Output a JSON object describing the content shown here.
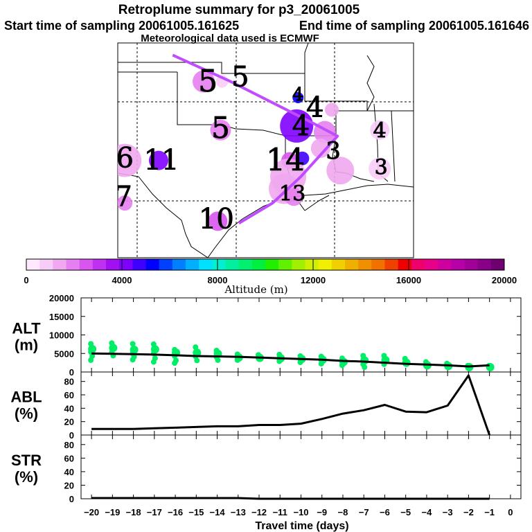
{
  "header": {
    "title": "Retroplume summary for p3_20061005",
    "line2_start": "Start time of sampling 20061005.161625",
    "line2_end": "End time of sampling 20061005.161646",
    "line3": "Meteorological data used is ECMWF"
  },
  "colors": {
    "markers": "#00ee66",
    "line": "#000000",
    "track": "#c04cff"
  },
  "colorbar": {
    "label": "Altitude (m)",
    "tick_labels": [
      "0",
      "4000",
      "8000",
      "12000",
      "16000",
      "20000"
    ],
    "min": 0,
    "max": 20000,
    "colors": [
      "#fde8fd",
      "#f8ccf8",
      "#f0a8f0",
      "#e680f0",
      "#d855f0",
      "#c030f0",
      "#a010f0",
      "#8000ff",
      "#4000ff",
      "#0000ff",
      "#0040ff",
      "#0080ff",
      "#00b0ff",
      "#00e0ff",
      "#00f0d0",
      "#00f0a0",
      "#00f070",
      "#00f040",
      "#20f000",
      "#60f000",
      "#a0f000",
      "#d0f000",
      "#f0f000",
      "#f0d000",
      "#f0b000",
      "#f09000",
      "#f07000",
      "#f04000",
      "#f00000",
      "#f0006a",
      "#e8008a",
      "#d000a0",
      "#b800a8",
      "#a00098",
      "#880088",
      "#700070"
    ]
  },
  "map": {
    "labels": [
      {
        "text": "5",
        "lon": -100.6,
        "lat": 36.5,
        "size": 44
      },
      {
        "text": "5",
        "lon": -98.3,
        "lat": 36.7,
        "size": 40
      },
      {
        "text": "4",
        "lon": -94.2,
        "lat": 35.9,
        "size": 26
      },
      {
        "text": "4",
        "lon": -93.0,
        "lat": 35.2,
        "size": 40
      },
      {
        "text": "4",
        "lon": -94.0,
        "lat": 34.3,
        "size": 40
      },
      {
        "text": "4",
        "lon": -88.4,
        "lat": 34.1,
        "size": 30
      },
      {
        "text": "5",
        "lon": -99.7,
        "lat": 34.2,
        "size": 42
      },
      {
        "text": "3",
        "lon": -91.7,
        "lat": 33.1,
        "size": 34
      },
      {
        "text": "6",
        "lon": -106.5,
        "lat": 32.7,
        "size": 40
      },
      {
        "text": "11",
        "lon": -103.9,
        "lat": 32.6,
        "size": 40
      },
      {
        "text": "14",
        "lon": -95.1,
        "lat": 32.6,
        "size": 44
      },
      {
        "text": "3",
        "lon": -88.3,
        "lat": 32.3,
        "size": 30
      },
      {
        "text": "7",
        "lon": -106.6,
        "lat": 30.8,
        "size": 40
      },
      {
        "text": "13",
        "lon": -94.6,
        "lat": 31.0,
        "size": 30
      },
      {
        "text": "10",
        "lon": -100.0,
        "lat": 29.7,
        "size": 40
      }
    ],
    "plumes": [
      {
        "lon": -100.9,
        "lat": 36.6,
        "alt": 1800,
        "r": 16
      },
      {
        "lon": -99.6,
        "lat": 36.6,
        "alt": 800,
        "r": 9
      },
      {
        "lon": -94.2,
        "lat": 35.8,
        "alt": 5200,
        "r": 8
      },
      {
        "lon": -91.8,
        "lat": 35.2,
        "alt": 1200,
        "r": 10
      },
      {
        "lon": -94.3,
        "lat": 34.4,
        "alt": 4200,
        "r": 24
      },
      {
        "lon": -92.3,
        "lat": 34.1,
        "alt": 2200,
        "r": 16
      },
      {
        "lon": -88.4,
        "lat": 34.2,
        "alt": 1000,
        "r": 14
      },
      {
        "lon": -99.7,
        "lat": 34.2,
        "alt": 1700,
        "r": 15
      },
      {
        "lon": -92.6,
        "lat": 33.3,
        "alt": 1500,
        "r": 14
      },
      {
        "lon": -106.5,
        "lat": 32.7,
        "alt": 1600,
        "r": 24
      },
      {
        "lon": -104.1,
        "lat": 32.7,
        "alt": 4400,
        "r": 14
      },
      {
        "lon": -93.9,
        "lat": 32.8,
        "alt": 4600,
        "r": 10
      },
      {
        "lon": -94.8,
        "lat": 32.7,
        "alt": 2500,
        "r": 12
      },
      {
        "lon": -91.2,
        "lat": 32.2,
        "alt": 1400,
        "r": 20
      },
      {
        "lon": -88.4,
        "lat": 32.3,
        "alt": 700,
        "r": 16
      },
      {
        "lon": -94.9,
        "lat": 31.9,
        "alt": 1300,
        "r": 26
      },
      {
        "lon": -95.2,
        "lat": 31.3,
        "alt": 1600,
        "r": 22
      },
      {
        "lon": -106.5,
        "lat": 30.6,
        "alt": 1900,
        "r": 11
      },
      {
        "lon": -94.5,
        "lat": 30.9,
        "alt": 1900,
        "r": 13
      },
      {
        "lon": -99.9,
        "lat": 29.7,
        "alt": 2500,
        "r": 14
      }
    ],
    "track": [
      {
        "lon": -103.1,
        "lat": 37.9
      },
      {
        "lon": -99.0,
        "lat": 36.6
      },
      {
        "lon": -93.3,
        "lat": 34.6
      },
      {
        "lon": -91.4,
        "lat": 33.9
      },
      {
        "lon": -94.0,
        "lat": 31.9
      },
      {
        "lon": -96.0,
        "lat": 30.6
      },
      {
        "lon": -98.4,
        "lat": 29.6
      }
    ]
  },
  "chart_data": [
    {
      "type": "scatter",
      "ylabel": "ALT",
      "yunit": "(m)",
      "ylim": [
        0,
        20000
      ],
      "yticks": [
        0,
        5000,
        10000,
        15000,
        20000
      ],
      "line": {
        "x": [
          -20,
          -19,
          -18,
          -17,
          -16,
          -15,
          -14,
          -13,
          -12,
          -11,
          -10,
          -9,
          -8,
          -7,
          -6,
          -5,
          -4,
          -3,
          -2,
          -1
        ],
        "y": [
          5000,
          4900,
          4800,
          4700,
          4500,
          4300,
          4200,
          4100,
          3900,
          3700,
          3500,
          3300,
          3000,
          2800,
          2500,
          2200,
          2000,
          1800,
          1500,
          1800
        ]
      },
      "scatter": [
        {
          "x": -20,
          "y": [
            7600,
            6200,
            5400,
            4300,
            3200
          ]
        },
        {
          "x": -19,
          "y": [
            7800,
            6500,
            5300,
            4400
          ]
        },
        {
          "x": -18,
          "y": [
            7600,
            6000,
            5000,
            4100,
            3300
          ]
        },
        {
          "x": -17,
          "y": [
            7500,
            6100,
            5000,
            3700,
            2700
          ]
        },
        {
          "x": -16,
          "y": [
            6000,
            5200,
            4300,
            3100,
            2400
          ]
        },
        {
          "x": -15,
          "y": [
            6700,
            5200,
            4200,
            3100
          ]
        },
        {
          "x": -14,
          "y": [
            5800,
            4900,
            4000,
            3200
          ]
        },
        {
          "x": -13,
          "y": [
            4800,
            3900,
            3200
          ]
        },
        {
          "x": -12,
          "y": [
            4600,
            3800
          ]
        },
        {
          "x": -11,
          "y": [
            4700,
            3700,
            2900
          ]
        },
        {
          "x": -10,
          "y": [
            4300,
            3500,
            2600
          ]
        },
        {
          "x": -9,
          "y": [
            4200,
            3300,
            2200
          ]
        },
        {
          "x": -8,
          "y": [
            3700,
            2700,
            1800
          ]
        },
        {
          "x": -7,
          "y": [
            4400,
            3100,
            2100,
            1300
          ]
        },
        {
          "x": -6,
          "y": [
            4400,
            3200,
            2100
          ]
        },
        {
          "x": -5,
          "y": [
            3600,
            2500
          ]
        },
        {
          "x": -4,
          "y": [
            2700,
            1800
          ]
        },
        {
          "x": -3,
          "y": [
            2300,
            1600
          ]
        },
        {
          "x": -2,
          "y": [
            1700,
            1300
          ]
        },
        {
          "x": -1,
          "y": [
            1700,
            1300
          ]
        }
      ]
    },
    {
      "type": "line",
      "ylabel": "ABL",
      "yunit": "(%)",
      "ylim": [
        0,
        90
      ],
      "yticks": [
        0,
        20,
        40,
        60,
        80
      ],
      "x": [
        -20,
        -19,
        -18,
        -17,
        -16,
        -15,
        -14,
        -13,
        -12,
        -11,
        -10,
        -9,
        -8,
        -7,
        -6,
        -5,
        -4,
        -3,
        -2,
        -1
      ],
      "y": [
        9,
        9,
        9,
        10,
        11,
        12,
        13,
        13,
        15,
        15,
        17,
        24,
        32,
        37,
        45,
        35,
        34,
        44,
        89,
        0
      ]
    },
    {
      "type": "line",
      "ylabel": "STR",
      "yunit": "(%)",
      "ylim": [
        0,
        90
      ],
      "yticks": [
        0,
        20,
        40,
        60,
        80
      ],
      "x": [
        -20,
        -19,
        -18,
        -17,
        -16,
        -15,
        -14,
        -13,
        -12,
        -11,
        -10,
        -9,
        -8,
        -7,
        -6,
        -5,
        -4,
        -3,
        -2,
        -1
      ],
      "y": [
        1,
        1,
        1,
        1,
        1,
        1,
        1,
        1,
        0,
        0,
        0,
        0,
        0,
        0,
        0,
        0,
        0,
        0,
        0,
        0
      ]
    }
  ],
  "xaxis": {
    "label": "Travel time (days)",
    "ticks": [
      -20,
      -19,
      -18,
      -17,
      -16,
      -15,
      -14,
      -13,
      -12,
      -11,
      -10,
      -9,
      -8,
      -7,
      -6,
      -5,
      -4,
      -3,
      -2,
      -1,
      0
    ],
    "tick_labels": [
      "−20",
      "−19",
      "−18",
      "−17",
      "−16",
      "−15",
      "−14",
      "−13",
      "−12",
      "−11",
      "−10",
      "−9",
      "−8",
      "−7",
      "−6",
      "−5",
      "−4",
      "−3",
      "−2",
      "−1",
      "0"
    ]
  }
}
